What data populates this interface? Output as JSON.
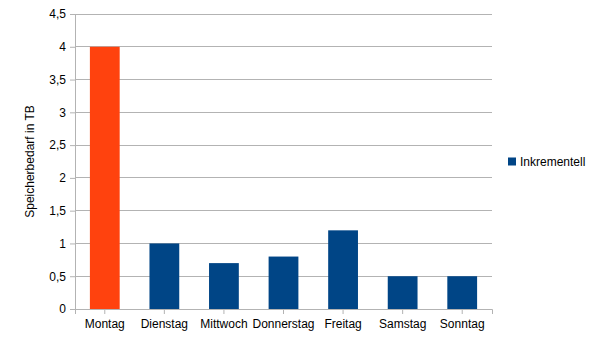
{
  "chart_data": {
    "type": "bar",
    "y_label": "Speicherbedarf in TB",
    "categories": [
      "Montag",
      "Dienstag",
      "Mittwoch",
      "Donnerstag",
      "Freitag",
      "Samstag",
      "Sonntag"
    ],
    "series": [
      {
        "name": "Inkrementell",
        "color": "#004586",
        "colors": [
          "#ff420e",
          "#004586",
          "#004586",
          "#004586",
          "#004586",
          "#004586",
          "#004586"
        ],
        "values": [
          4,
          1,
          0.7,
          0.8,
          1.2,
          0.5,
          0.5
        ]
      }
    ],
    "ylim": [
      0,
      4.5
    ],
    "yticks": [
      0,
      {
        "value": 0.5,
        "label": "0,5"
      },
      1,
      {
        "value": 1.5,
        "label": "1,5"
      },
      2,
      {
        "value": 2.5,
        "label": "2,5"
      },
      3,
      {
        "value": 3.5,
        "label": "3,5"
      },
      4,
      {
        "value": 4.5,
        "label": "4,5"
      }
    ],
    "grid": true,
    "legend": "right"
  }
}
